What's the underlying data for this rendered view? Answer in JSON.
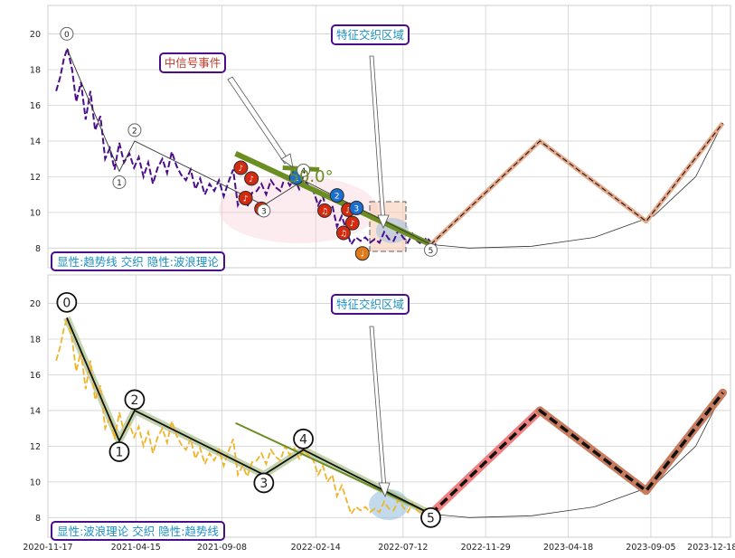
{
  "chart_data": [
    {
      "type": "line",
      "panel": "top",
      "xlim": [
        "2020-11-17",
        "2024-01-18"
      ],
      "ylim": [
        6.9,
        21.6
      ],
      "yticks": [
        8,
        10,
        12,
        14,
        16,
        18,
        20
      ],
      "grid": true,
      "price_color": "#4b0e8a",
      "price": {
        "x": [
          "2020-12-01",
          "2020-12-08",
          "2020-12-14",
          "2020-12-20",
          "2020-12-28",
          "2021-01-04",
          "2021-01-12",
          "2021-01-20",
          "2021-01-28",
          "2021-02-05",
          "2021-02-14",
          "2021-02-22",
          "2021-03-02",
          "2021-03-10",
          "2021-03-18",
          "2021-03-26",
          "2021-04-04",
          "2021-04-12",
          "2021-04-20",
          "2021-04-28",
          "2021-05-06",
          "2021-05-14",
          "2021-05-22",
          "2021-05-30",
          "2021-06-07",
          "2021-06-15",
          "2021-06-23",
          "2021-07-01",
          "2021-07-09",
          "2021-07-17",
          "2021-07-25",
          "2021-08-02",
          "2021-08-10",
          "2021-08-18",
          "2021-08-26",
          "2021-09-03",
          "2021-09-11",
          "2021-09-19",
          "2021-09-27",
          "2021-10-05",
          "2021-10-13",
          "2021-10-21",
          "2021-10-29",
          "2021-11-06",
          "2021-11-14",
          "2021-11-22",
          "2021-11-30",
          "2021-12-08",
          "2021-12-16",
          "2021-12-24",
          "2022-01-01",
          "2022-01-09",
          "2022-01-17",
          "2022-01-25",
          "2022-02-02",
          "2022-02-10",
          "2022-02-18",
          "2022-02-26",
          "2022-03-06",
          "2022-03-14",
          "2022-03-22",
          "2022-03-30",
          "2022-04-07",
          "2022-04-15",
          "2022-04-23",
          "2022-05-01",
          "2022-05-09",
          "2022-05-17",
          "2022-05-25",
          "2022-06-02",
          "2022-06-10",
          "2022-06-18",
          "2022-06-26",
          "2022-07-04",
          "2022-07-12",
          "2022-07-20",
          "2022-07-28",
          "2022-08-05",
          "2022-08-13",
          "2022-08-21",
          "2022-08-29",
          "2022-09-06"
        ],
        "y": [
          16.8,
          17.6,
          18.6,
          19.2,
          18.0,
          16.2,
          17.3,
          15.2,
          16.8,
          14.6,
          15.4,
          13.0,
          13.6,
          12.4,
          13.9,
          12.8,
          13.3,
          12.5,
          13.1,
          12.0,
          12.8,
          11.6,
          12.5,
          13.0,
          12.2,
          13.4,
          12.6,
          12.1,
          11.8,
          12.4,
          11.3,
          11.9,
          11.0,
          11.6,
          11.2,
          11.8,
          10.9,
          11.7,
          12.4,
          10.4,
          10.9,
          10.3,
          11.1,
          11.2,
          11.6,
          11.0,
          11.8,
          11.4,
          11.2,
          12.0,
          11.5,
          11.9,
          11.3,
          11.8,
          11.5,
          11.2,
          10.4,
          10.9,
          10.0,
          10.4,
          9.2,
          9.8,
          9.0,
          8.2,
          8.6,
          8.4,
          8.6,
          8.3,
          8.5,
          8.3,
          8.9,
          8.5,
          8.4,
          9.0,
          8.6,
          8.3,
          8.8,
          8.4,
          8.2,
          8.6,
          8.3,
          8.2
        ]
      },
      "wave_points": [
        {
          "label": "0",
          "x": "2020-12-19",
          "y": 19.2
        },
        {
          "label": "1",
          "x": "2021-03-18",
          "y": 12.3
        },
        {
          "label": "2",
          "x": "2021-04-13",
          "y": 14.0
        },
        {
          "label": "3",
          "x": "2021-11-18",
          "y": 10.4
        },
        {
          "label": "4",
          "x": "2022-01-24",
          "y": 11.8
        },
        {
          "label": "5",
          "x": "2022-08-28",
          "y": 8.2
        }
      ],
      "trendline": {
        "x": [
          "2021-10-01",
          "2022-08-28"
        ],
        "y": [
          13.3,
          8.2
        ]
      },
      "trend_angle_label": "-50.0°",
      "projection": {
        "x": [
          "2022-08-28",
          "2023-03-01",
          "2023-08-28",
          "2024-01-05"
        ],
        "y": [
          8.2,
          14.0,
          9.5,
          15.0
        ]
      },
      "arc": {
        "x": [
          "2022-08-28",
          "2022-11-01",
          "2023-02-15",
          "2023-06-01",
          "2023-09-10",
          "2023-11-20",
          "2024-01-05"
        ],
        "y": [
          8.2,
          8.0,
          8.1,
          8.6,
          9.8,
          12.0,
          15.0
        ]
      },
      "signal_markers": [
        {
          "x": "2021-10-10",
          "y": 12.5,
          "color": "#d42b10",
          "label": "♪"
        },
        {
          "x": "2021-10-28",
          "y": 11.9,
          "color": "#d42b10",
          "label": "♪"
        },
        {
          "x": "2021-10-18",
          "y": 10.8,
          "color": "#d42b10",
          "label": "♪"
        },
        {
          "x": "2021-11-14",
          "y": 10.2,
          "color": "#d42b10",
          "label": "♪"
        },
        {
          "x": "2022-01-12",
          "y": 11.95,
          "color": "#1b6fd1",
          "label": "1"
        },
        {
          "x": "2022-03-01",
          "y": 10.1,
          "color": "#d42b10",
          "label": "♫"
        },
        {
          "x": "2022-03-22",
          "y": 10.95,
          "color": "#1b6fd1",
          "label": "2"
        },
        {
          "x": "2022-04-10",
          "y": 10.15,
          "color": "#d42b10",
          "label": "♪"
        },
        {
          "x": "2022-04-24",
          "y": 10.25,
          "color": "#1b6fd1",
          "label": "3"
        },
        {
          "x": "2022-04-17",
          "y": 9.4,
          "color": "#d42b10",
          "label": "♪"
        },
        {
          "x": "2022-04-02",
          "y": 8.85,
          "color": "#d42b10",
          "label": "♫"
        },
        {
          "x": "2022-05-04",
          "y": 7.7,
          "color": "#e07a1a",
          "label": "♩"
        }
      ],
      "label_bottom": "显性:趋势线 交织 隐性:波浪理论",
      "label_signal": "中信号事件",
      "label_zone": "特征交织区域"
    },
    {
      "type": "line",
      "panel": "bottom",
      "xlim": [
        "2020-11-17",
        "2024-01-18"
      ],
      "ylim": [
        6.9,
        21.6
      ],
      "yticks": [
        8,
        10,
        12,
        14,
        16,
        18,
        20
      ],
      "xticks": [
        "2020-11-17",
        "2021-04-15",
        "2021-09-08",
        "2022-02-14",
        "2022-07-12",
        "2022-11-29",
        "2023-04-18",
        "2023-09-05",
        "2023-12-18"
      ],
      "grid": true,
      "price_color": "#f0b429",
      "price": {
        "x": [
          "2020-12-01",
          "2020-12-08",
          "2020-12-14",
          "2020-12-20",
          "2020-12-28",
          "2021-01-04",
          "2021-01-12",
          "2021-01-20",
          "2021-01-28",
          "2021-02-05",
          "2021-02-14",
          "2021-02-22",
          "2021-03-02",
          "2021-03-10",
          "2021-03-18",
          "2021-03-26",
          "2021-04-04",
          "2021-04-12",
          "2021-04-20",
          "2021-04-28",
          "2021-05-06",
          "2021-05-14",
          "2021-05-22",
          "2021-05-30",
          "2021-06-07",
          "2021-06-15",
          "2021-06-23",
          "2021-07-01",
          "2021-07-09",
          "2021-07-17",
          "2021-07-25",
          "2021-08-02",
          "2021-08-10",
          "2021-08-18",
          "2021-08-26",
          "2021-09-03",
          "2021-09-11",
          "2021-09-19",
          "2021-09-27",
          "2021-10-05",
          "2021-10-13",
          "2021-10-21",
          "2021-10-29",
          "2021-11-06",
          "2021-11-14",
          "2021-11-22",
          "2021-11-30",
          "2021-12-08",
          "2021-12-16",
          "2021-12-24",
          "2022-01-01",
          "2022-01-09",
          "2022-01-17",
          "2022-01-25",
          "2022-02-02",
          "2022-02-10",
          "2022-02-18",
          "2022-02-26",
          "2022-03-06",
          "2022-03-14",
          "2022-03-22",
          "2022-03-30",
          "2022-04-07",
          "2022-04-15",
          "2022-04-23",
          "2022-05-01",
          "2022-05-09",
          "2022-05-17",
          "2022-05-25",
          "2022-06-02",
          "2022-06-10",
          "2022-06-18",
          "2022-06-26",
          "2022-07-04",
          "2022-07-12",
          "2022-07-20",
          "2022-07-28",
          "2022-08-05",
          "2022-08-13",
          "2022-08-21",
          "2022-08-29",
          "2022-09-06"
        ],
        "y": [
          16.8,
          17.6,
          18.6,
          19.2,
          18.0,
          16.2,
          17.3,
          15.2,
          16.8,
          14.6,
          15.4,
          13.0,
          13.6,
          12.4,
          13.9,
          12.8,
          13.3,
          12.5,
          13.1,
          12.0,
          12.8,
          11.6,
          12.5,
          13.0,
          12.2,
          13.4,
          12.6,
          12.1,
          11.8,
          12.4,
          11.3,
          11.9,
          11.0,
          11.6,
          11.2,
          11.8,
          10.9,
          11.7,
          12.4,
          10.4,
          10.9,
          10.3,
          11.1,
          11.2,
          11.6,
          11.0,
          11.8,
          11.4,
          11.2,
          12.0,
          11.5,
          11.9,
          11.3,
          11.8,
          11.5,
          11.2,
          10.4,
          10.9,
          10.0,
          10.4,
          9.2,
          9.8,
          9.0,
          8.2,
          8.6,
          8.4,
          8.6,
          8.3,
          8.5,
          8.3,
          8.9,
          8.5,
          8.4,
          9.0,
          8.6,
          8.3,
          8.8,
          8.4,
          8.2,
          8.6,
          8.3,
          8.2
        ]
      },
      "wave_points": [
        {
          "label": "0",
          "x": "2020-12-19",
          "y": 19.2
        },
        {
          "label": "1",
          "x": "2021-03-18",
          "y": 12.3
        },
        {
          "label": "2",
          "x": "2021-04-13",
          "y": 14.0
        },
        {
          "label": "3",
          "x": "2021-11-18",
          "y": 10.4
        },
        {
          "label": "4",
          "x": "2022-01-24",
          "y": 11.8
        },
        {
          "label": "5",
          "x": "2022-08-28",
          "y": 8.2
        }
      ],
      "trendline": {
        "x": [
          "2021-10-01",
          "2022-08-28"
        ],
        "y": [
          13.3,
          8.2
        ]
      },
      "projection": {
        "x": [
          "2022-08-28",
          "2023-03-01",
          "2023-08-28",
          "2024-01-05"
        ],
        "y": [
          8.2,
          14.0,
          9.5,
          15.0
        ]
      },
      "arc": {
        "x": [
          "2022-08-28",
          "2022-11-01",
          "2023-02-15",
          "2023-06-01",
          "2023-09-10",
          "2023-11-20",
          "2024-01-05"
        ],
        "y": [
          8.2,
          8.0,
          8.1,
          8.6,
          9.8,
          12.0,
          15.0
        ]
      },
      "label_bottom": "显性:波浪理论 交织 隐性:趋势线",
      "label_zone": "特征交织区域"
    }
  ]
}
